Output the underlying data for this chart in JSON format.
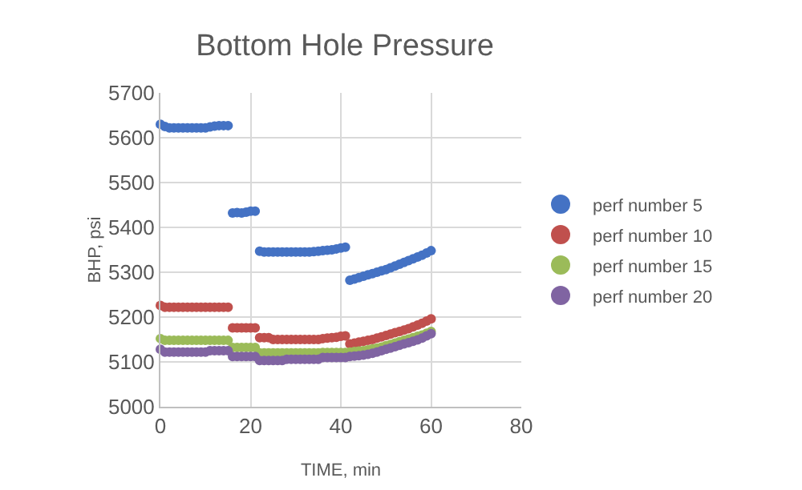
{
  "chart_data": {
    "type": "scatter",
    "title": "Bottom Hole Pressure",
    "xlabel": "TIME, min",
    "ylabel": "BHP, psi",
    "x": [
      0,
      1,
      2,
      3,
      4,
      5,
      6,
      7,
      8,
      9,
      10,
      11,
      12,
      13,
      14,
      15,
      16,
      17,
      18,
      19,
      20,
      21,
      22,
      23,
      24,
      25,
      26,
      27,
      28,
      29,
      30,
      31,
      32,
      33,
      34,
      35,
      36,
      37,
      38,
      39,
      40,
      41,
      42,
      43,
      44,
      45,
      46,
      47,
      48,
      49,
      50,
      51,
      52,
      53,
      54,
      55,
      56,
      57,
      58,
      59,
      60
    ],
    "series": [
      {
        "name": "perf number 5",
        "color": "#4472c4",
        "values": [
          5630,
          5625,
          5622,
          5622,
          5622,
          5622,
          5622,
          5622,
          5622,
          5622,
          5622,
          5624,
          5626,
          5627,
          5627,
          5627,
          5432,
          5433,
          5432,
          5434,
          5436,
          5436,
          5347,
          5345,
          5345,
          5345,
          5345,
          5345,
          5345,
          5345,
          5345,
          5345,
          5345,
          5345,
          5346,
          5347,
          5348,
          5349,
          5350,
          5352,
          5354,
          5356,
          5282,
          5285,
          5288,
          5291,
          5294,
          5297,
          5300,
          5303,
          5306,
          5310,
          5314,
          5318,
          5322,
          5326,
          5330,
          5334,
          5338,
          5343,
          5348
        ]
      },
      {
        "name": "perf number 10",
        "color": "#c0504d",
        "values": [
          5226,
          5222,
          5222,
          5222,
          5222,
          5222,
          5222,
          5222,
          5222,
          5222,
          5222,
          5222,
          5222,
          5222,
          5222,
          5222,
          5176,
          5176,
          5176,
          5176,
          5176,
          5176,
          5154,
          5154,
          5154,
          5150,
          5150,
          5150,
          5150,
          5150,
          5150,
          5150,
          5150,
          5150,
          5150,
          5150,
          5152,
          5153,
          5154,
          5155,
          5157,
          5158,
          5140,
          5142,
          5144,
          5146,
          5148,
          5150,
          5153,
          5156,
          5159,
          5162,
          5165,
          5168,
          5171,
          5174,
          5178,
          5182,
          5186,
          5191,
          5196
        ]
      },
      {
        "name": "perf number 15",
        "color": "#9bbb59",
        "values": [
          5152,
          5148,
          5148,
          5148,
          5148,
          5148,
          5148,
          5148,
          5148,
          5148,
          5148,
          5148,
          5148,
          5148,
          5148,
          5148,
          5132,
          5132,
          5132,
          5132,
          5132,
          5132,
          5120,
          5120,
          5120,
          5120,
          5120,
          5120,
          5120,
          5120,
          5120,
          5120,
          5120,
          5120,
          5120,
          5120,
          5121,
          5121,
          5121,
          5121,
          5121,
          5121,
          5122,
          5123,
          5124,
          5125,
          5127,
          5129,
          5131,
          5133,
          5136,
          5139,
          5142,
          5145,
          5148,
          5151,
          5154,
          5157,
          5160,
          5164,
          5168
        ]
      },
      {
        "name": "perf number 20",
        "color": "#8064a2",
        "values": [
          5128,
          5122,
          5122,
          5122,
          5122,
          5122,
          5122,
          5122,
          5122,
          5122,
          5122,
          5125,
          5125,
          5125,
          5125,
          5125,
          5112,
          5112,
          5112,
          5112,
          5112,
          5112,
          5103,
          5103,
          5103,
          5103,
          5103,
          5103,
          5106,
          5106,
          5106,
          5106,
          5106,
          5106,
          5106,
          5106,
          5110,
          5110,
          5110,
          5110,
          5110,
          5110,
          5112,
          5113,
          5114,
          5115,
          5117,
          5119,
          5122,
          5125,
          5128,
          5131,
          5134,
          5137,
          5140,
          5143,
          5146,
          5149,
          5153,
          5158,
          5163
        ]
      }
    ],
    "xlim": [
      0,
      80
    ],
    "xticks": [
      0,
      20,
      40,
      60,
      80
    ],
    "ylim": [
      5000,
      5700
    ],
    "yticks": [
      5000,
      5100,
      5200,
      5300,
      5400,
      5500,
      5600,
      5700
    ],
    "grid": true,
    "legend": "right",
    "marker": "circle"
  }
}
